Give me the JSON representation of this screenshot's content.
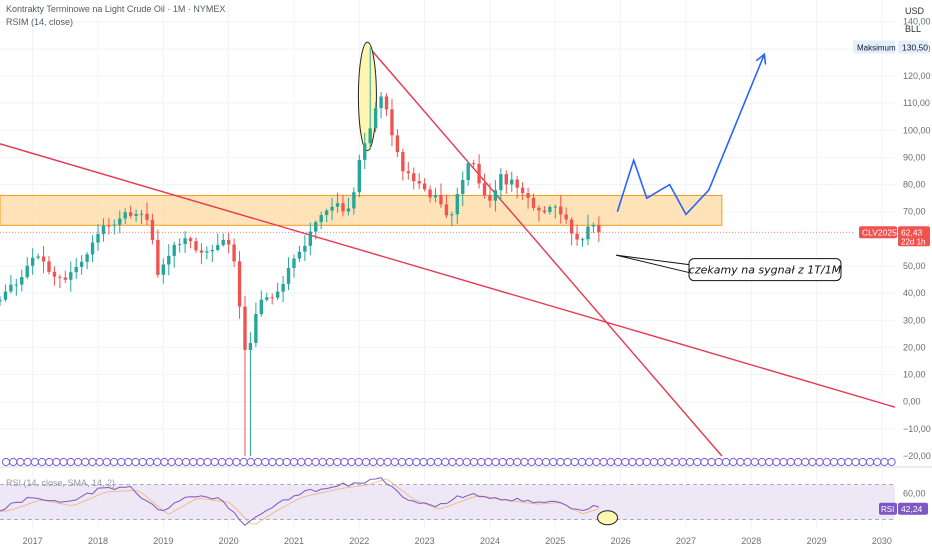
{
  "header": {
    "title": "Kontrakty Terminowe na Light Crude Oil · 1M · NYMEX",
    "indicator": "RSIM (14, close)"
  },
  "price_scale": {
    "currency": "USD",
    "unit": "BLL"
  },
  "annotations": {
    "note": "czekamy na sygnał z 1T/1M",
    "max_label": "Maksimum",
    "max_value": "130,50",
    "ticker": "CLV2025",
    "last_price": "62,43",
    "countdown": "22d 1h"
  },
  "rsi_panel": {
    "label": "RSI (14, close, SMA, 14, 2)",
    "badge": "RSI",
    "value": "42,24",
    "tick_labels": [
      "60,00",
      "40,00"
    ]
  },
  "colors": {
    "up": "#26a69a",
    "down": "#ef5350",
    "trendline": "#e8364f",
    "projection": "#2962ff",
    "zone_fill": "#ffd9a0",
    "zone_border": "#f29a1a",
    "rsi_line": "#7e57c2",
    "rsi_band": "#ede7f6",
    "highlight": "#fff6b3"
  },
  "chart_data": {
    "type": "candlestick",
    "timeframe": "1M",
    "ylim": [
      -20,
      148
    ],
    "y_ticks": [
      -20,
      -10,
      0,
      10,
      20,
      30,
      40,
      50,
      60,
      70,
      80,
      90,
      100,
      110,
      120,
      130,
      140
    ],
    "y_tick_labels": [
      "−20,00",
      "−10,00",
      "0,00",
      "10,00",
      "20,00",
      "30,00",
      "40,00",
      "50,00",
      "60,00",
      "70,00",
      "80,00",
      "90,00",
      "100,00",
      "110,00",
      "120,00",
      "130,00",
      "140,00"
    ],
    "x_range": [
      2016.5,
      2030.2
    ],
    "x_ticks": [
      2017,
      2018,
      2019,
      2020,
      2021,
      2022,
      2023,
      2024,
      2025,
      2026,
      2027,
      2028,
      2029,
      2030
    ],
    "x_tick_labels": [
      "2017",
      "2018",
      "2019",
      "2020",
      "2021",
      "2022",
      "2023",
      "2024",
      "2025",
      "2026",
      "2027",
      "2028",
      "2029",
      "2030"
    ],
    "close_waypoints": [
      [
        2016.5,
        38
      ],
      [
        2016.8,
        45
      ],
      [
        2016.92,
        51
      ],
      [
        2017.1,
        53
      ],
      [
        2017.45,
        45
      ],
      [
        2017.8,
        54
      ],
      [
        2018.0,
        63
      ],
      [
        2018.35,
        68
      ],
      [
        2018.6,
        70
      ],
      [
        2018.8,
        65
      ],
      [
        2018.92,
        45
      ],
      [
        2019.05,
        53
      ],
      [
        2019.35,
        62
      ],
      [
        2019.55,
        56
      ],
      [
        2019.8,
        58
      ],
      [
        2019.95,
        62
      ],
      [
        2020.1,
        51
      ],
      [
        2020.22,
        20
      ],
      [
        2020.3,
        18
      ],
      [
        2020.45,
        36
      ],
      [
        2020.7,
        40
      ],
      [
        2020.85,
        45
      ],
      [
        2021.0,
        52
      ],
      [
        2021.3,
        63
      ],
      [
        2021.55,
        74
      ],
      [
        2021.85,
        70
      ],
      [
        2022.0,
        88
      ],
      [
        2022.17,
        100
      ],
      [
        2022.33,
        114
      ],
      [
        2022.5,
        99
      ],
      [
        2022.65,
        87
      ],
      [
        2022.92,
        80
      ],
      [
        2023.2,
        74
      ],
      [
        2023.4,
        68
      ],
      [
        2023.58,
        82
      ],
      [
        2023.72,
        91
      ],
      [
        2023.95,
        72
      ],
      [
        2024.15,
        83
      ],
      [
        2024.35,
        80
      ],
      [
        2024.55,
        75
      ],
      [
        2024.75,
        70
      ],
      [
        2024.95,
        72
      ],
      [
        2025.15,
        68
      ],
      [
        2025.3,
        58
      ],
      [
        2025.45,
        62
      ],
      [
        2025.6,
        66
      ],
      [
        2025.73,
        62.43
      ]
    ],
    "price_extremes": {
      "low": -37.63,
      "low_x": 2020.29,
      "high": 130.5,
      "high_x": 2022.17
    },
    "resistance_zone": {
      "x": [
        2016.5,
        2027.55
      ],
      "y": [
        65,
        76
      ]
    },
    "trendlines": [
      {
        "name": "long-term-downtrend",
        "points": [
          [
            2016.5,
            95
          ],
          [
            2030.2,
            -2
          ]
        ]
      },
      {
        "name": "post-2022-downtrend",
        "points": [
          [
            2022.17,
            130
          ],
          [
            2027.55,
            -20
          ]
        ]
      }
    ],
    "projection_path": [
      [
        2025.95,
        70
      ],
      [
        2026.2,
        89
      ],
      [
        2026.4,
        75
      ],
      [
        2026.75,
        80
      ],
      [
        2027.0,
        69
      ],
      [
        2027.35,
        78
      ],
      [
        2028.2,
        128
      ]
    ],
    "price_line": 62.43,
    "rsi": {
      "ylim": [
        18,
        82
      ],
      "levels": [
        70,
        30
      ],
      "tick_values": [
        60,
        40
      ],
      "waypoints": [
        [
          2016.5,
          42
        ],
        [
          2017.0,
          55
        ],
        [
          2017.5,
          48
        ],
        [
          2018.0,
          64
        ],
        [
          2018.5,
          66
        ],
        [
          2018.95,
          38
        ],
        [
          2019.4,
          57
        ],
        [
          2019.9,
          52
        ],
        [
          2020.25,
          25
        ],
        [
          2020.6,
          42
        ],
        [
          2021.0,
          58
        ],
        [
          2021.6,
          68
        ],
        [
          2022.0,
          72
        ],
        [
          2022.3,
          79
        ],
        [
          2022.7,
          56
        ],
        [
          2023.1,
          44
        ],
        [
          2023.7,
          60
        ],
        [
          2024.1,
          55
        ],
        [
          2024.6,
          50
        ],
        [
          2024.95,
          52
        ],
        [
          2025.3,
          39
        ],
        [
          2025.6,
          46
        ],
        [
          2025.73,
          42.24
        ]
      ],
      "signal_offset": -2.5
    }
  }
}
